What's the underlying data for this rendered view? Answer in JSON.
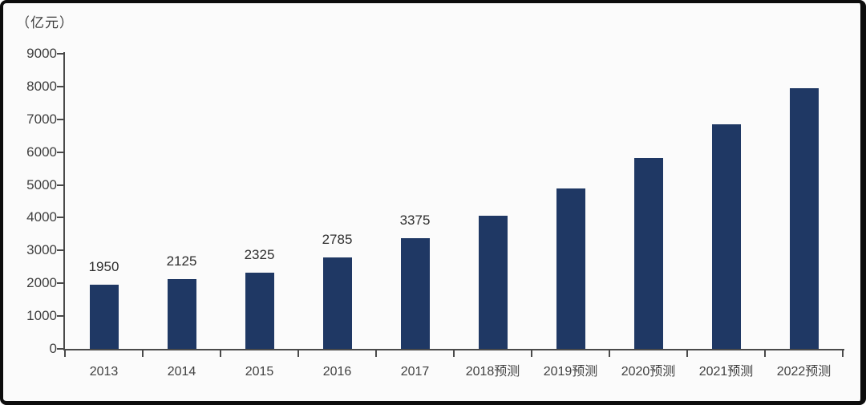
{
  "unit_label": "（亿元）",
  "colors": {
    "bar": "#1f3864",
    "axis": "#4a4a4a",
    "tick": "#4a4a4a",
    "axis_text": "#3f3f3f",
    "value_text": "#2e2e2e",
    "background": "#fbfbfb",
    "border": "#0d0d0d"
  },
  "chart_data": {
    "type": "bar",
    "title": "",
    "xlabel": "",
    "ylabel": "（亿元）",
    "categories": [
      "2013",
      "2014",
      "2015",
      "2016",
      "2017",
      "2018预测",
      "2019预测",
      "2020预测",
      "2021预测",
      "2022预测"
    ],
    "values": [
      1950,
      2125,
      2325,
      2785,
      3375,
      4050,
      4900,
      5830,
      6840,
      7950
    ],
    "data_labels": [
      "1950",
      "2125",
      "2325",
      "2785",
      "3375",
      "",
      "",
      "",
      "",
      ""
    ],
    "ylim": [
      0,
      9000
    ],
    "yticks": [
      0,
      1000,
      2000,
      3000,
      4000,
      5000,
      6000,
      7000,
      8000,
      9000
    ],
    "grid": false,
    "legend": "none"
  }
}
